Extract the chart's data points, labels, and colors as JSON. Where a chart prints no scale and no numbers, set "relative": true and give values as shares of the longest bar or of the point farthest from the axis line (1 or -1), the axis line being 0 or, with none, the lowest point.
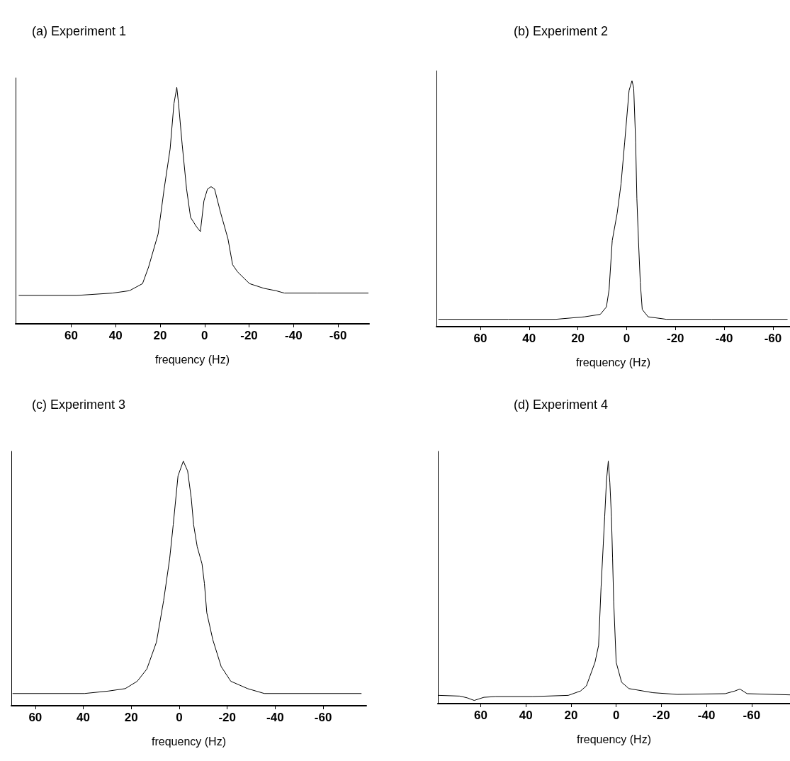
{
  "chart_data": [
    {
      "type": "line",
      "title": "(a) Experiment 1",
      "xlabel": "frequency (Hz)",
      "relative": true,
      "tick_labels": "x",
      "grid": false,
      "marker": "none",
      "line_style": "solid",
      "color": "#000000",
      "xlim": [
        85,
        -74
      ],
      "xticks": [
        60,
        40,
        20,
        0,
        -20,
        -40,
        -60
      ],
      "x": [
        83.6,
        57.6,
        41.4,
        33.8,
        27.9,
        25.2,
        20.9,
        18.2,
        15.5,
        13.8,
        12.5,
        11.7,
        10.1,
        8.1,
        6.3,
        3.6,
        1.9,
        0.3,
        -1.3,
        -2.9,
        -4.5,
        -7.2,
        -10.5,
        -12.6,
        -14.8,
        -20.2,
        -26.7,
        -32.1,
        -35.9,
        -50.5,
        -73.7
      ],
      "values": [
        0.12,
        0.12,
        0.13,
        0.14,
        0.17,
        0.24,
        0.38,
        0.57,
        0.74,
        0.93,
        1.0,
        0.93,
        0.76,
        0.57,
        0.45,
        0.41,
        0.39,
        0.52,
        0.57,
        0.58,
        0.57,
        0.47,
        0.36,
        0.25,
        0.22,
        0.17,
        0.15,
        0.14,
        0.13,
        0.13,
        0.13
      ]
    },
    {
      "type": "line",
      "title": "(b) Experiment 2",
      "xlabel": "frequency (Hz)",
      "relative": true,
      "tick_labels": "x",
      "grid": false,
      "marker": "none",
      "line_style": "solid",
      "color": "#000000",
      "xlim": [
        78,
        -67
      ],
      "xticks": [
        60,
        40,
        20,
        0,
        -20,
        -40,
        -60
      ],
      "x": [
        77.2,
        48.5,
        28.9,
        17.2,
        10.8,
        8.3,
        7.2,
        5.9,
        3.9,
        2.3,
        0.8,
        -1.0,
        -2.2,
        -2.9,
        -3.7,
        -4.2,
        -4.9,
        -5.6,
        -6.4,
        -8.8,
        -16.2,
        -34.8,
        -66
      ],
      "values": [
        0.03,
        0.03,
        0.03,
        0.04,
        0.05,
        0.08,
        0.15,
        0.35,
        0.46,
        0.58,
        0.75,
        0.96,
        1.0,
        0.97,
        0.75,
        0.52,
        0.34,
        0.18,
        0.07,
        0.04,
        0.03,
        0.03,
        0.03
      ]
    },
    {
      "type": "line",
      "title": "(c) Experiment 3",
      "xlabel": "frequency (Hz)",
      "relative": true,
      "tick_labels": "x",
      "grid": false,
      "marker": "none",
      "line_style": "solid",
      "color": "#000000",
      "xlim": [
        70,
        -78
      ],
      "xticks": [
        60,
        40,
        20,
        0,
        -20,
        -40,
        -60
      ],
      "x": [
        69.5,
        39.5,
        29.5,
        22.5,
        17.5,
        13.5,
        9.5,
        6.5,
        4,
        2.5,
        0.5,
        -1.7,
        -3.5,
        -5,
        -6,
        -7.5,
        -9.5,
        -10.5,
        -11.5,
        -14,
        -17.5,
        -21.5,
        -28.5,
        -35.5,
        -45.5,
        -76
      ],
      "values": [
        0.05,
        0.05,
        0.06,
        0.07,
        0.1,
        0.15,
        0.26,
        0.43,
        0.6,
        0.74,
        0.94,
        1.0,
        0.96,
        0.85,
        0.74,
        0.65,
        0.58,
        0.5,
        0.38,
        0.27,
        0.16,
        0.1,
        0.07,
        0.05,
        0.05,
        0.05
      ]
    },
    {
      "type": "line",
      "title": "(d) Experiment 4",
      "xlabel": "frequency (Hz)",
      "relative": true,
      "tick_labels": "x",
      "grid": false,
      "marker": "none",
      "line_style": "solid",
      "color": "#000000",
      "xlim": [
        79,
        -77
      ],
      "xticks": [
        60,
        40,
        20,
        0,
        -20,
        -40,
        -60
      ],
      "x": [
        78.7,
        69.3,
        66.1,
        62.9,
        58.6,
        53.3,
        37.2,
        21.2,
        15.8,
        13.2,
        9.4,
        7.8,
        6.7,
        5.7,
        5.1,
        4.3,
        3.5,
        2.8,
        2.1,
        1.6,
        1.1,
        0,
        -2.4,
        -5.6,
        -16.3,
        -27,
        -48.3,
        -52.6,
        -54.8,
        -58,
        -77
      ],
      "values": [
        0.034,
        0.031,
        0.024,
        0.013,
        0.026,
        0.029,
        0.029,
        0.034,
        0.052,
        0.073,
        0.17,
        0.24,
        0.48,
        0.66,
        0.77,
        0.92,
        1.0,
        0.91,
        0.77,
        0.6,
        0.42,
        0.17,
        0.088,
        0.062,
        0.045,
        0.038,
        0.041,
        0.052,
        0.06,
        0.041,
        0.036
      ]
    }
  ]
}
